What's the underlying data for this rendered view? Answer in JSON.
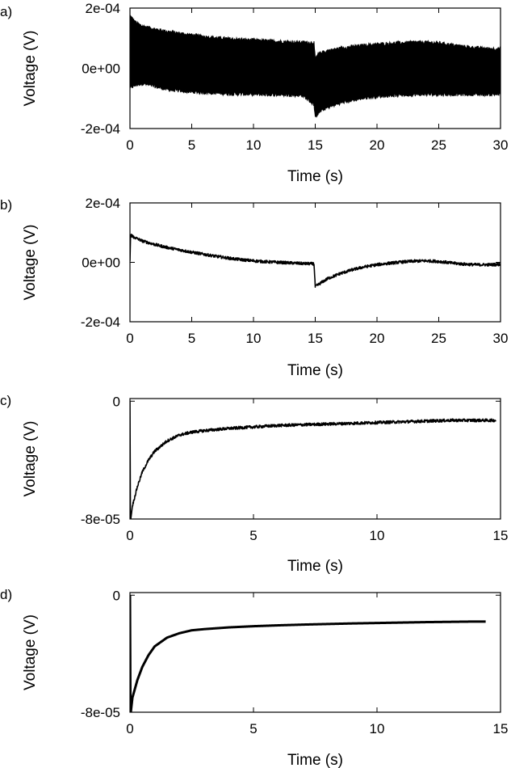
{
  "chart_data": [
    {
      "type": "line",
      "panel_label": "a)",
      "xlabel": "Time (s)",
      "ylabel": "Voltage (V)",
      "xlim": [
        0,
        30
      ],
      "ylim": [
        -0.0002,
        0.0002
      ],
      "xticks": [
        0,
        5,
        10,
        15,
        20,
        25,
        30
      ],
      "xtick_labels": [
        "0",
        "5",
        "10",
        "15",
        "20",
        "25",
        "30"
      ],
      "yticks": [
        -0.0002,
        0,
        0.0002
      ],
      "ytick_labels": [
        "-2e-04",
        "0e+00",
        "2e-04"
      ],
      "grid": false,
      "style": "dense-band",
      "series": [
        {
          "x": [
            0,
            0.5,
            1,
            2,
            3,
            4,
            5,
            6,
            7,
            8,
            9,
            10,
            11,
            12,
            13,
            14,
            14.9,
            15.0,
            15.2,
            15.5,
            16,
            17,
            18,
            19,
            20,
            21,
            22,
            23,
            24,
            25,
            26,
            27,
            28,
            29,
            30
          ],
          "y_upper": [
            0.000175,
            0.00015,
            0.00014,
            0.00013,
            0.000122,
            0.000116,
            0.00011,
            0.000105,
            0.000101,
            9.8e-05,
            9.5e-05,
            9.3e-05,
            9.1e-05,
            8.9e-05,
            8.7e-05,
            8.6e-05,
            8.5e-05,
            3e-05,
            4.5e-05,
            5.2e-05,
            5.8e-05,
            6.6e-05,
            7.2e-05,
            7.6e-05,
            7.9e-05,
            8.2e-05,
            8.4e-05,
            8.6e-05,
            8.6e-05,
            8.4e-05,
            7.8e-05,
            7.2e-05,
            6.8e-05,
            6.5e-05,
            6.4e-05
          ],
          "y_lower": [
            -6.5e-05,
            -5.5e-05,
            -5e-05,
            -6e-05,
            -7e-05,
            -7.5e-05,
            -7.8e-05,
            -8e-05,
            -8.2e-05,
            -8.4e-05,
            -8.5e-05,
            -8.6e-05,
            -8.7e-05,
            -8.7e-05,
            -8.8e-05,
            -9e-05,
            -0.00012,
            -0.000165,
            -0.00015,
            -0.00014,
            -0.00013,
            -0.000115,
            -0.000105,
            -9.8e-05,
            -9.3e-05,
            -9e-05,
            -8.8e-05,
            -8.7e-05,
            -8.6e-05,
            -8.6e-05,
            -8.6e-05,
            -8.6e-05,
            -8.6e-05,
            -8.6e-05,
            -8.6e-05
          ]
        }
      ]
    },
    {
      "type": "line",
      "panel_label": "b)",
      "xlabel": "Time (s)",
      "ylabel": "Voltage (V)",
      "xlim": [
        0,
        30
      ],
      "ylim": [
        -0.0002,
        0.0002
      ],
      "xticks": [
        0,
        5,
        10,
        15,
        20,
        25,
        30
      ],
      "xtick_labels": [
        "0",
        "5",
        "10",
        "15",
        "20",
        "25",
        "30"
      ],
      "yticks": [
        -0.0002,
        0,
        0.0002
      ],
      "ytick_labels": [
        "-2e-04",
        "0e+00",
        "2e-04"
      ],
      "grid": false,
      "style": "noisy-line",
      "series": [
        {
          "x": [
            0,
            0.05,
            0.3,
            1,
            2,
            3,
            4,
            5,
            6,
            7,
            8,
            9,
            10,
            11,
            12,
            13,
            14,
            14.9,
            15.0,
            15.5,
            16,
            17,
            18,
            19,
            20,
            21,
            22,
            23,
            24,
            25,
            26,
            27,
            28,
            29,
            30
          ],
          "y": [
            5e-06,
            9.2e-05,
            8.5e-05,
            7.2e-05,
            6e-05,
            5e-05,
            4.2e-05,
            3.4e-05,
            2.7e-05,
            2e-05,
            1.4e-05,
            9e-06,
            5e-06,
            2e-06,
            0.0,
            -2e-06,
            -4e-06,
            -5e-06,
            -8.2e-05,
            -6.8e-05,
            -5.5e-05,
            -3.8e-05,
            -2.5e-05,
            -1.5e-05,
            -8e-06,
            -3e-06,
            1e-06,
            4e-06,
            5e-06,
            3e-06,
            -2e-06,
            -6e-06,
            -8e-06,
            -8e-06,
            -7e-06
          ]
        }
      ]
    },
    {
      "type": "line",
      "panel_label": "c)",
      "xlabel": "Time (s)",
      "ylabel": "Voltage (V)",
      "xlim": [
        0,
        15
      ],
      "ylim": [
        -8e-05,
        1.8e-06
      ],
      "xticks": [
        0,
        5,
        10,
        15
      ],
      "xtick_labels": [
        "0",
        "5",
        "10",
        "15"
      ],
      "yticks": [
        -8e-05,
        0
      ],
      "ytick_labels": [
        "-8e-05",
        "0"
      ],
      "grid": false,
      "style": "noisy-line",
      "series": [
        {
          "x": [
            0,
            0.02,
            0.1,
            0.3,
            0.5,
            0.75,
            1,
            1.5,
            2,
            2.5,
            3,
            4,
            5,
            6,
            7,
            8,
            9,
            10,
            11,
            12,
            13,
            14,
            14.8
          ],
          "y": [
            0.0,
            -8.2e-05,
            -7.1e-05,
            -5.8e-05,
            -4.8e-05,
            -4e-05,
            -3.4e-05,
            -2.7e-05,
            -2.3e-05,
            -2.1e-05,
            -2e-05,
            -1.85e-05,
            -1.75e-05,
            -1.65e-05,
            -1.6e-05,
            -1.55e-05,
            -1.5e-05,
            -1.45e-05,
            -1.4e-05,
            -1.35e-05,
            -1.3e-05,
            -1.3e-05,
            -1.3e-05
          ]
        }
      ]
    },
    {
      "type": "line",
      "panel_label": "d)",
      "xlabel": "Time (s)",
      "ylabel": "Voltage (V)",
      "xlim": [
        0,
        15
      ],
      "ylim": [
        -8e-05,
        1.8e-06
      ],
      "xticks": [
        0,
        5,
        10,
        15
      ],
      "xtick_labels": [
        "0",
        "5",
        "10",
        "15"
      ],
      "yticks": [
        -8e-05,
        0
      ],
      "ytick_labels": [
        "-8e-05",
        "0"
      ],
      "grid": false,
      "style": "smooth-line",
      "series": [
        {
          "x": [
            0,
            0.02,
            0.1,
            0.3,
            0.5,
            0.75,
            1,
            1.5,
            2,
            2.5,
            3,
            4,
            5,
            6,
            7,
            8,
            9,
            10,
            11,
            12,
            13,
            14,
            14.4
          ],
          "y": [
            0.0,
            -8.2e-05,
            -7e-05,
            -5.8e-05,
            -4.9e-05,
            -4.1e-05,
            -3.5e-05,
            -2.9e-05,
            -2.6e-05,
            -2.4e-05,
            -2.32e-05,
            -2.2e-05,
            -2.12e-05,
            -2.06e-05,
            -2.01e-05,
            -1.97e-05,
            -1.93e-05,
            -1.9e-05,
            -1.87e-05,
            -1.84e-05,
            -1.82e-05,
            -1.8e-05,
            -1.8e-05
          ]
        }
      ]
    }
  ]
}
